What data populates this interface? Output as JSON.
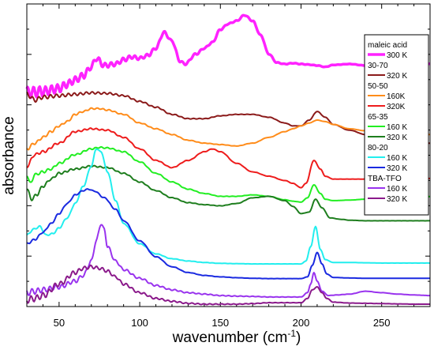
{
  "chart_data": {
    "type": "line",
    "xlabel_main": "wavenumber (cm",
    "xlabel_sup": "-1",
    "xlabel_close": ")",
    "ylabel": "absorbance",
    "xlim": [
      30,
      280
    ],
    "ylim": [
      0,
      100
    ],
    "x_ticks": [
      50,
      100,
      150,
      200,
      250
    ],
    "y_major_ticks": 6,
    "grid": false,
    "legend_position": "right",
    "legend": [
      {
        "group": "maleic acid",
        "items": [
          {
            "label": "300 K",
            "series": 0
          }
        ]
      },
      {
        "group": "30-70",
        "items": [
          {
            "label": "320 K",
            "series": 1
          }
        ]
      },
      {
        "group": "50-50",
        "items": [
          {
            "label": "160K",
            "series": 2
          },
          {
            "label": "320K",
            "series": 3
          }
        ]
      },
      {
        "group": "65-35",
        "items": [
          {
            "label": "160 K",
            "series": 4
          },
          {
            "label": "320 K",
            "series": 5
          }
        ]
      },
      {
        "group": "80-20",
        "items": [
          {
            "label": "160 K",
            "series": 6
          },
          {
            "label": "320 K",
            "series": 7
          }
        ]
      },
      {
        "group": "TBA-TFO",
        "items": [
          {
            "label": "160 K",
            "series": 8
          },
          {
            "label": "320 K",
            "series": 9
          }
        ]
      }
    ],
    "series": [
      {
        "group": "maleic acid",
        "temp": "300 K",
        "color": "#ff22ff",
        "width": 3.5,
        "ripple": 2.0,
        "x": [
          30,
          33,
          40,
          50,
          55,
          60,
          65,
          70,
          73,
          78,
          85,
          90,
          95,
          100,
          105,
          110,
          115,
          120,
          125,
          128,
          135,
          140,
          145,
          150,
          155,
          160,
          165,
          170,
          175,
          180,
          185,
          190,
          195,
          200,
          205,
          210,
          215,
          220,
          230,
          240,
          250,
          260,
          270,
          280
        ],
        "y": [
          73.5,
          73.7,
          74,
          75,
          76.5,
          78,
          79.5,
          82.5,
          85.5,
          83,
          83.5,
          85,
          86,
          85.5,
          86.5,
          89,
          94.5,
          91.5,
          84.5,
          83.5,
          87,
          89,
          91,
          95.5,
          97.5,
          98.5,
          100.5,
          98.5,
          93.5,
          87,
          84,
          83.5,
          83.8,
          83.5,
          83.3,
          83,
          82.5,
          83.2,
          83.5,
          83,
          83.3,
          83.1,
          83.5,
          83.6
        ]
      },
      {
        "group": "30-70",
        "temp": "320 K",
        "color": "#8b1a1a",
        "width": 2,
        "ripple": 0.8,
        "x": [
          30,
          35,
          40,
          50,
          60,
          70,
          80,
          90,
          100,
          110,
          120,
          130,
          140,
          150,
          160,
          170,
          180,
          190,
          195,
          200,
          205,
          210,
          215,
          220,
          230,
          240,
          250,
          260,
          270,
          280
        ],
        "y": [
          73,
          71,
          72,
          72.5,
          73,
          73.5,
          73.3,
          72.5,
          70.5,
          68.5,
          66,
          64.5,
          64.5,
          65.5,
          66,
          66,
          65,
          63,
          62,
          62,
          64,
          67,
          65,
          62.5,
          60.5,
          59,
          58,
          57,
          56.3,
          56
        ]
      },
      {
        "group": "50-50",
        "temp": "160K",
        "color": "#ff8c1a",
        "width": 2,
        "ripple": 0.5,
        "x": [
          30,
          35,
          40,
          45,
          50,
          55,
          60,
          65,
          70,
          75,
          80,
          90,
          100,
          110,
          120,
          130,
          140,
          150,
          160,
          170,
          180,
          190,
          195,
          200,
          205,
          210,
          215,
          220,
          230,
          240,
          250,
          260,
          270,
          280
        ],
        "y": [
          54,
          56,
          58,
          60,
          62,
          63.5,
          66,
          67,
          68,
          68,
          67.5,
          66,
          63,
          61,
          59,
          57,
          56,
          55.5,
          55,
          56,
          58,
          60,
          61,
          62,
          63,
          64,
          63.5,
          62.5,
          61,
          60.3,
          59.8,
          59.5,
          59.2,
          59
        ]
      },
      {
        "group": "50-50",
        "temp": "320K",
        "color": "#ee1c1c",
        "width": 2,
        "ripple": 0.5,
        "x": [
          30,
          35,
          40,
          50,
          60,
          70,
          80,
          90,
          100,
          110,
          120,
          130,
          140,
          145,
          150,
          160,
          170,
          180,
          190,
          195,
          200,
          203,
          208,
          212,
          215,
          220,
          230,
          240,
          250,
          260,
          270,
          280
        ],
        "y": [
          48,
          52,
          53,
          56,
          60,
          61,
          60.5,
          58,
          54,
          50,
          47.5,
          50,
          53,
          54,
          53,
          49,
          46,
          44.5,
          43,
          42,
          40.5,
          42,
          50,
          47,
          44.5,
          43.5,
          43.5,
          43.5,
          43.6,
          43.6,
          43.7,
          43.7
        ]
      },
      {
        "group": "65-35",
        "temp": "160 K",
        "color": "#22ee22",
        "width": 2,
        "ripple": 0.5,
        "x": [
          30,
          32,
          35,
          40,
          45,
          50,
          60,
          70,
          75,
          80,
          90,
          100,
          110,
          120,
          130,
          140,
          150,
          160,
          170,
          180,
          190,
          195,
          200,
          204,
          208,
          212,
          215,
          220,
          230,
          240,
          250,
          260,
          270,
          280
        ],
        "y": [
          45,
          42,
          45,
          46,
          47,
          49,
          52,
          54,
          54.5,
          54.3,
          53,
          49.5,
          45.5,
          42.5,
          40,
          38.5,
          37.5,
          37.5,
          38,
          37.5,
          36.3,
          35.8,
          35.5,
          37,
          41.5,
          38.5,
          36.5,
          36,
          36.2,
          36.5,
          36.8,
          37,
          37.2,
          37.4
        ]
      },
      {
        "group": "65-35",
        "temp": "320 K",
        "color": "#1e7e1e",
        "width": 2,
        "ripple": 0.5,
        "x": [
          30,
          33,
          36,
          40,
          45,
          50,
          60,
          70,
          80,
          90,
          100,
          110,
          120,
          130,
          140,
          150,
          160,
          170,
          180,
          190,
          195,
          200,
          205,
          209,
          213,
          218,
          225,
          230,
          240,
          250,
          260,
          270,
          280
        ],
        "y": [
          40,
          36.5,
          38,
          41,
          43.5,
          45.5,
          47,
          48,
          47.5,
          45.5,
          42.5,
          39.5,
          37,
          35.3,
          34.6,
          34.2,
          35,
          37,
          37.5,
          36,
          34,
          31.5,
          32,
          36.5,
          33.5,
          30,
          29.5,
          29.2,
          29,
          29,
          29,
          29,
          29
        ]
      },
      {
        "group": "80-20",
        "temp": "160 K",
        "color": "#22eeee",
        "width": 2,
        "ripple": 0.3,
        "x": [
          30,
          34,
          38,
          42,
          46,
          50,
          55,
          60,
          65,
          70,
          73,
          76,
          80,
          85,
          90,
          100,
          110,
          120,
          130,
          140,
          150,
          160,
          170,
          180,
          190,
          200,
          203,
          206,
          209,
          212,
          215,
          220,
          230,
          240,
          250,
          260,
          270,
          280
        ],
        "y": [
          24,
          26,
          27,
          24,
          24.5,
          26.5,
          30,
          35,
          41,
          48,
          54,
          53,
          46,
          36,
          28,
          21,
          17.5,
          15.8,
          15,
          14.5,
          14.2,
          14.1,
          14,
          14,
          14,
          14,
          15,
          20,
          27,
          19,
          15.5,
          14.5,
          14.5,
          14.4,
          14.3,
          14.3,
          14.3,
          14.3
        ]
      },
      {
        "group": "80-20",
        "temp": "320 K",
        "color": "#1a2ae0",
        "width": 2,
        "ripple": 0.3,
        "x": [
          30,
          35,
          40,
          45,
          50,
          55,
          60,
          65,
          68,
          72,
          78,
          85,
          90,
          100,
          110,
          120,
          130,
          140,
          150,
          160,
          170,
          180,
          190,
          200,
          204,
          207,
          210,
          213,
          216,
          220,
          230,
          240,
          250,
          260,
          270,
          280
        ],
        "y": [
          21,
          22.5,
          25,
          28,
          31.5,
          35,
          38,
          39.5,
          40,
          39.3,
          37,
          33,
          29,
          22,
          16.5,
          13,
          11,
          10,
          9.5,
          9.2,
          9,
          8.9,
          8.9,
          8.9,
          9.5,
          13.5,
          18,
          14,
          10.5,
          9.3,
          9.1,
          9,
          9,
          9,
          9,
          9
        ]
      },
      {
        "group": "TBA-TFO",
        "temp": "160 K",
        "color": "#9933ee",
        "width": 2,
        "ripple": 1.1,
        "x": [
          30,
          35,
          40,
          50,
          60,
          65,
          70,
          73,
          76,
          78,
          80,
          85,
          90,
          100,
          110,
          120,
          130,
          140,
          150,
          160,
          170,
          180,
          190,
          200,
          204,
          206,
          208,
          210,
          213,
          217,
          222,
          230,
          240,
          250,
          260,
          270,
          280
        ],
        "y": [
          4,
          4.5,
          5,
          6,
          8,
          10,
          15,
          22,
          28,
          26,
          20,
          15,
          12,
          9,
          6.5,
          5,
          4,
          3.5,
          3,
          2.8,
          2.7,
          2.5,
          2.5,
          2.5,
          4,
          7,
          11,
          8,
          4.5,
          3,
          3.2,
          3.5,
          4.5,
          4,
          3.5,
          3.2,
          3
        ]
      },
      {
        "group": "TBA-TFO",
        "temp": "320 K",
        "color": "#8b1a8b",
        "width": 2,
        "ripple": 1.2,
        "x": [
          30,
          35,
          40,
          50,
          60,
          65,
          70,
          75,
          80,
          85,
          90,
          100,
          110,
          120,
          130,
          140,
          150,
          160,
          170,
          180,
          190,
          200,
          204,
          207,
          210,
          213,
          216,
          220,
          230,
          240,
          250,
          260,
          270,
          280
        ],
        "y": [
          1.5,
          2,
          3,
          7,
          11,
          12.5,
          13,
          12.5,
          11.5,
          9.5,
          7,
          4,
          2,
          1,
          0.3,
          0,
          0,
          0,
          0.2,
          0.5,
          0.5,
          0.5,
          2,
          5,
          6,
          4,
          2,
          0.7,
          0.4,
          0.3,
          0.2,
          0.1,
          0,
          0
        ]
      }
    ]
  }
}
